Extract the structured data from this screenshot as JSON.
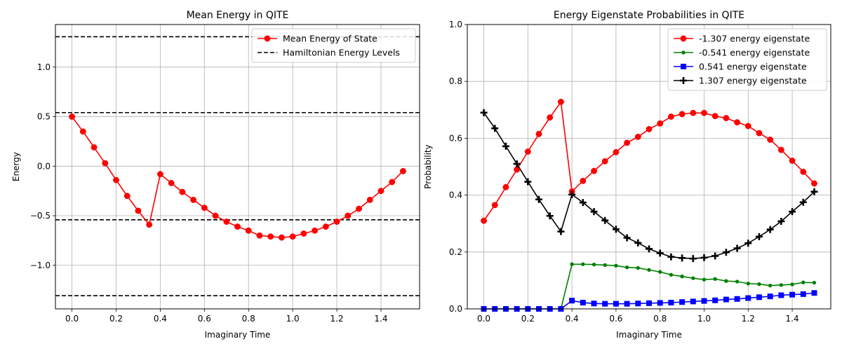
{
  "chart_data": [
    {
      "type": "line",
      "title": "Mean Energy in QITE",
      "xlabel": "Imaginary Time",
      "ylabel": "Energy",
      "xlim": [
        -0.075,
        1.575
      ],
      "ylim": [
        -1.44,
        1.43
      ],
      "xticks": [
        0.0,
        0.2,
        0.4,
        0.6,
        0.8,
        1.0,
        1.2,
        1.4
      ],
      "xtick_labels": [
        "0.0",
        "0.2",
        "0.4",
        "0.6",
        "0.8",
        "1.0",
        "1.2",
        "1.4"
      ],
      "yticks": [
        -1.0,
        -0.5,
        0.0,
        0.5,
        1.0
      ],
      "ytick_labels": [
        "−1.0",
        "−0.5",
        "0.0",
        "0.5",
        "1.0"
      ],
      "grid": true,
      "legend_position": "upper-right",
      "x": [
        0.0,
        0.05,
        0.1,
        0.15,
        0.2,
        0.25,
        0.3,
        0.35,
        0.4,
        0.45,
        0.5,
        0.55,
        0.6,
        0.65,
        0.7,
        0.75,
        0.8,
        0.85,
        0.9,
        0.95,
        1.0,
        1.05,
        1.1,
        1.15,
        1.2,
        1.25,
        1.3,
        1.35,
        1.4,
        1.45,
        1.5
      ],
      "series": [
        {
          "name": "Mean Energy of State",
          "color": "#ff0000",
          "marker": "circle",
          "values": [
            0.5,
            0.35,
            0.19,
            0.03,
            -0.14,
            -0.3,
            -0.45,
            -0.59,
            -0.08,
            -0.17,
            -0.26,
            -0.34,
            -0.42,
            -0.5,
            -0.56,
            -0.61,
            -0.65,
            -0.7,
            -0.71,
            -0.72,
            -0.71,
            -0.68,
            -0.65,
            -0.61,
            -0.56,
            -0.5,
            -0.43,
            -0.34,
            -0.25,
            -0.16,
            -0.05
          ]
        }
      ],
      "hlines": {
        "name": "Hamiltonian Energy Levels",
        "color": "#000000",
        "style": "dashed",
        "values": [
          1.307,
          0.541,
          -0.541,
          -1.307
        ]
      }
    },
    {
      "type": "line",
      "title": "Energy Eigenstate Probabilities in QITE",
      "xlabel": "Imaginary Time",
      "ylabel": "Probability",
      "xlim": [
        -0.075,
        1.575
      ],
      "ylim": [
        0.0,
        1.0
      ],
      "xticks": [
        0.0,
        0.2,
        0.4,
        0.6,
        0.8,
        1.0,
        1.2,
        1.4
      ],
      "xtick_labels": [
        "0.0",
        "0.2",
        "0.4",
        "0.6",
        "0.8",
        "1.0",
        "1.2",
        "1.4"
      ],
      "yticks": [
        0.0,
        0.2,
        0.4,
        0.6,
        0.8,
        1.0
      ],
      "ytick_labels": [
        "0.0",
        "0.2",
        "0.4",
        "0.6",
        "0.8",
        "1.0"
      ],
      "grid": true,
      "legend_position": "upper-right",
      "x": [
        0.0,
        0.05,
        0.1,
        0.15,
        0.2,
        0.25,
        0.3,
        0.35,
        0.4,
        0.45,
        0.5,
        0.55,
        0.6,
        0.65,
        0.7,
        0.75,
        0.8,
        0.85,
        0.9,
        0.95,
        1.0,
        1.05,
        1.1,
        1.15,
        1.2,
        1.25,
        1.3,
        1.35,
        1.4,
        1.45,
        1.5
      ],
      "series": [
        {
          "name": "-1.307 energy eigenstate",
          "color": "#ff0000",
          "marker": "circle",
          "values": [
            0.31,
            0.365,
            0.428,
            0.49,
            0.553,
            0.615,
            0.673,
            0.728,
            0.413,
            0.45,
            0.485,
            0.519,
            0.551,
            0.584,
            0.605,
            0.632,
            0.652,
            0.676,
            0.685,
            0.689,
            0.689,
            0.678,
            0.671,
            0.656,
            0.643,
            0.618,
            0.595,
            0.559,
            0.521,
            0.482,
            0.441
          ]
        },
        {
          "name": "-0.541 energy eigenstate",
          "color": "#008000",
          "marker": "point",
          "values": [
            0.0,
            0.0,
            0.0,
            0.0,
            0.0,
            0.0,
            0.0,
            0.0,
            0.157,
            0.157,
            0.156,
            0.154,
            0.152,
            0.146,
            0.144,
            0.137,
            0.13,
            0.12,
            0.114,
            0.108,
            0.103,
            0.105,
            0.098,
            0.096,
            0.089,
            0.087,
            0.082,
            0.084,
            0.086,
            0.093,
            0.092
          ]
        },
        {
          "name": "0.541 energy eigenstate",
          "color": "#0000ff",
          "marker": "square",
          "values": [
            0.0,
            0.0,
            0.0,
            0.0,
            0.0,
            0.0,
            0.0,
            0.0,
            0.029,
            0.022,
            0.019,
            0.018,
            0.018,
            0.018,
            0.019,
            0.02,
            0.021,
            0.022,
            0.024,
            0.026,
            0.028,
            0.03,
            0.033,
            0.035,
            0.038,
            0.041,
            0.044,
            0.048,
            0.05,
            0.052,
            0.056
          ]
        },
        {
          "name": "1.307 energy eigenstate",
          "color": "#000000",
          "marker": "plus",
          "values": [
            0.69,
            0.635,
            0.572,
            0.51,
            0.447,
            0.385,
            0.327,
            0.272,
            0.402,
            0.374,
            0.342,
            0.311,
            0.28,
            0.25,
            0.232,
            0.211,
            0.196,
            0.183,
            0.179,
            0.177,
            0.18,
            0.186,
            0.199,
            0.213,
            0.231,
            0.254,
            0.279,
            0.308,
            0.342,
            0.375,
            0.412
          ]
        }
      ]
    }
  ]
}
